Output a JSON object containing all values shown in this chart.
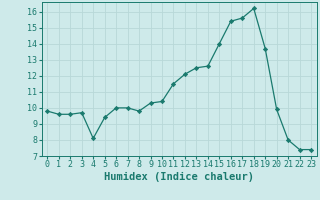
{
  "x": [
    0,
    1,
    2,
    3,
    4,
    5,
    6,
    7,
    8,
    9,
    10,
    11,
    12,
    13,
    14,
    15,
    16,
    17,
    18,
    19,
    20,
    21,
    22,
    23
  ],
  "y": [
    9.8,
    9.6,
    9.6,
    9.7,
    8.1,
    9.4,
    10.0,
    10.0,
    9.8,
    10.3,
    10.4,
    11.5,
    12.1,
    12.5,
    12.6,
    14.0,
    15.4,
    15.6,
    16.2,
    13.7,
    9.9,
    8.0,
    7.4,
    7.4
  ],
  "xlabel": "Humidex (Indice chaleur)",
  "xlim": [
    -0.5,
    23.5
  ],
  "ylim": [
    7,
    16.6
  ],
  "yticks": [
    7,
    8,
    9,
    10,
    11,
    12,
    13,
    14,
    15,
    16
  ],
  "xticks": [
    0,
    1,
    2,
    3,
    4,
    5,
    6,
    7,
    8,
    9,
    10,
    11,
    12,
    13,
    14,
    15,
    16,
    17,
    18,
    19,
    20,
    21,
    22,
    23
  ],
  "line_color": "#1a7a6e",
  "marker": "D",
  "marker_size": 2.2,
  "bg_color": "#ceeaea",
  "grid_color": "#b8d8d8",
  "tick_label_fontsize": 6.0,
  "xlabel_fontsize": 7.5
}
